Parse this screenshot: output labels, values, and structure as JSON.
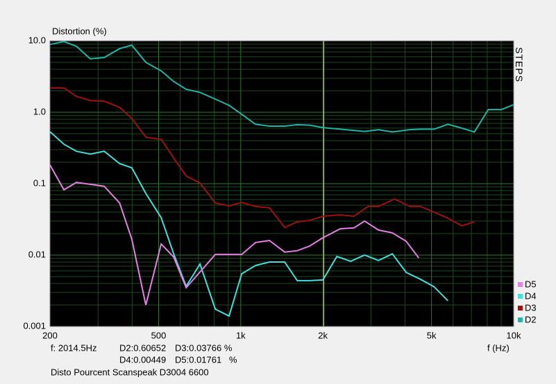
{
  "chart_data": {
    "type": "line",
    "title": "Distortion (%)",
    "x_label": "f (Hz)",
    "side_label": "STEPS",
    "footer": "Disto Pourcent Scanspeak D3004 6600",
    "xscale": "log",
    "yscale": "log",
    "grid": true,
    "legend": "lower right",
    "xlim": [
      200,
      10000
    ],
    "ylim": [
      0.001,
      10
    ],
    "xticks": [
      200,
      500,
      {
        "value": 1000,
        "label": "1k"
      },
      {
        "value": 2000,
        "label": "2k"
      },
      {
        "value": 5000,
        "label": "5k"
      },
      {
        "value": 10000,
        "label": "10k"
      }
    ],
    "x_minor_ticks": [
      300,
      400,
      600,
      700,
      800,
      900,
      3000,
      4000,
      6000,
      7000,
      8000,
      9000
    ],
    "yticks": [
      0.001,
      0.01,
      0.1,
      {
        "value": 1,
        "label": "1.0"
      },
      {
        "value": 10,
        "label": "10.0"
      }
    ],
    "y_minor_ticks": [
      0.002,
      0.003,
      0.004,
      0.005,
      0.006,
      0.007,
      0.008,
      0.009,
      0.02,
      0.03,
      0.04,
      0.05,
      0.06,
      0.07,
      0.08,
      0.09,
      0.2,
      0.3,
      0.4,
      0.5,
      0.6,
      0.7,
      0.8,
      0.9,
      2,
      3,
      4,
      5,
      6,
      7,
      8,
      9
    ],
    "cursor": {
      "x": 2014.5,
      "label": "f: 2014.5Hz",
      "readouts": [
        "D2:0.60652",
        "D3:0.03766 %",
        "D4:0.00449",
        "D5:0.01761   %"
      ]
    },
    "series": [
      {
        "name": "D2",
        "color": "#1fb5a8",
        "x": [
          200,
          225,
          250,
          281,
          316,
          360,
          399,
          449,
          511,
          568,
          631,
          709,
          807,
          906,
          1008,
          1133,
          1274,
          1449,
          1611,
          1790,
          2000,
          2317,
          2843,
          3198,
          3592,
          4160,
          4544,
          5108,
          5742,
          6455,
          7179,
          8070,
          9017,
          10000
        ],
        "values": [
          8.9,
          9.8,
          8.4,
          5.6,
          5.85,
          7.8,
          8.7,
          5.0,
          3.8,
          2.7,
          2.1,
          1.9,
          1.53,
          1.25,
          0.94,
          0.68,
          0.64,
          0.64,
          0.67,
          0.66,
          0.61,
          0.58,
          0.54,
          0.57,
          0.53,
          0.57,
          0.58,
          0.58,
          0.68,
          0.6,
          0.53,
          1.09,
          1.09,
          1.28
        ]
      },
      {
        "name": "D3",
        "color": "#a01010",
        "x": [
          200,
          225,
          250,
          281,
          316,
          360,
          399,
          449,
          511,
          568,
          631,
          709,
          807,
          906,
          1008,
          1133,
          1274,
          1449,
          1611,
          1790,
          2000,
          2317,
          2600,
          2926,
          3198,
          3660,
          4160,
          4544,
          5108,
          5742,
          6455,
          7179
        ],
        "values": [
          2.19,
          2.19,
          1.67,
          1.46,
          1.43,
          1.17,
          0.82,
          0.447,
          0.418,
          0.229,
          0.128,
          0.102,
          0.0535,
          0.0489,
          0.0547,
          0.0479,
          0.0458,
          0.0244,
          0.0292,
          0.0306,
          0.035,
          0.0366,
          0.035,
          0.048,
          0.048,
          0.061,
          0.048,
          0.048,
          0.04,
          0.0328,
          0.0257,
          0.0292
        ]
      },
      {
        "name": "D4",
        "color": "#40e0e0",
        "x": [
          200,
          225,
          250,
          281,
          316,
          360,
          399,
          449,
          511,
          568,
          631,
          709,
          807,
          906,
          1008,
          1133,
          1274,
          1449,
          1611,
          1790,
          2000,
          2250,
          2530,
          2843,
          3198,
          3592,
          4040,
          4544,
          5108,
          5742
        ],
        "values": [
          0.535,
          0.357,
          0.285,
          0.26,
          0.285,
          0.191,
          0.167,
          0.073,
          0.0334,
          0.0104,
          0.00366,
          0.00748,
          0.00175,
          0.0014,
          0.00547,
          0.00715,
          0.008,
          0.008,
          0.00438,
          0.00438,
          0.00448,
          0.00957,
          0.0082,
          0.01,
          0.0084,
          0.0104,
          0.0057,
          0.0046,
          0.0036,
          0.00229
        ]
      },
      {
        "name": "D5",
        "color": "#e87ee8",
        "x": [
          200,
          225,
          250,
          281,
          316,
          360,
          399,
          449,
          511,
          568,
          631,
          709,
          807,
          906,
          1008,
          1133,
          1274,
          1449,
          1611,
          1790,
          2000,
          2317,
          2600,
          2843,
          3198,
          3592,
          4040,
          4490
        ],
        "values": [
          0.183,
          0.082,
          0.104,
          0.098,
          0.092,
          0.0535,
          0.0167,
          0.002,
          0.0143,
          0.0094,
          0.0035,
          0.0058,
          0.0102,
          0.0102,
          0.0102,
          0.015,
          0.016,
          0.011,
          0.0115,
          0.0134,
          0.0175,
          0.0234,
          0.024,
          0.03,
          0.0224,
          0.0205,
          0.0156,
          0.0091
        ]
      }
    ]
  }
}
